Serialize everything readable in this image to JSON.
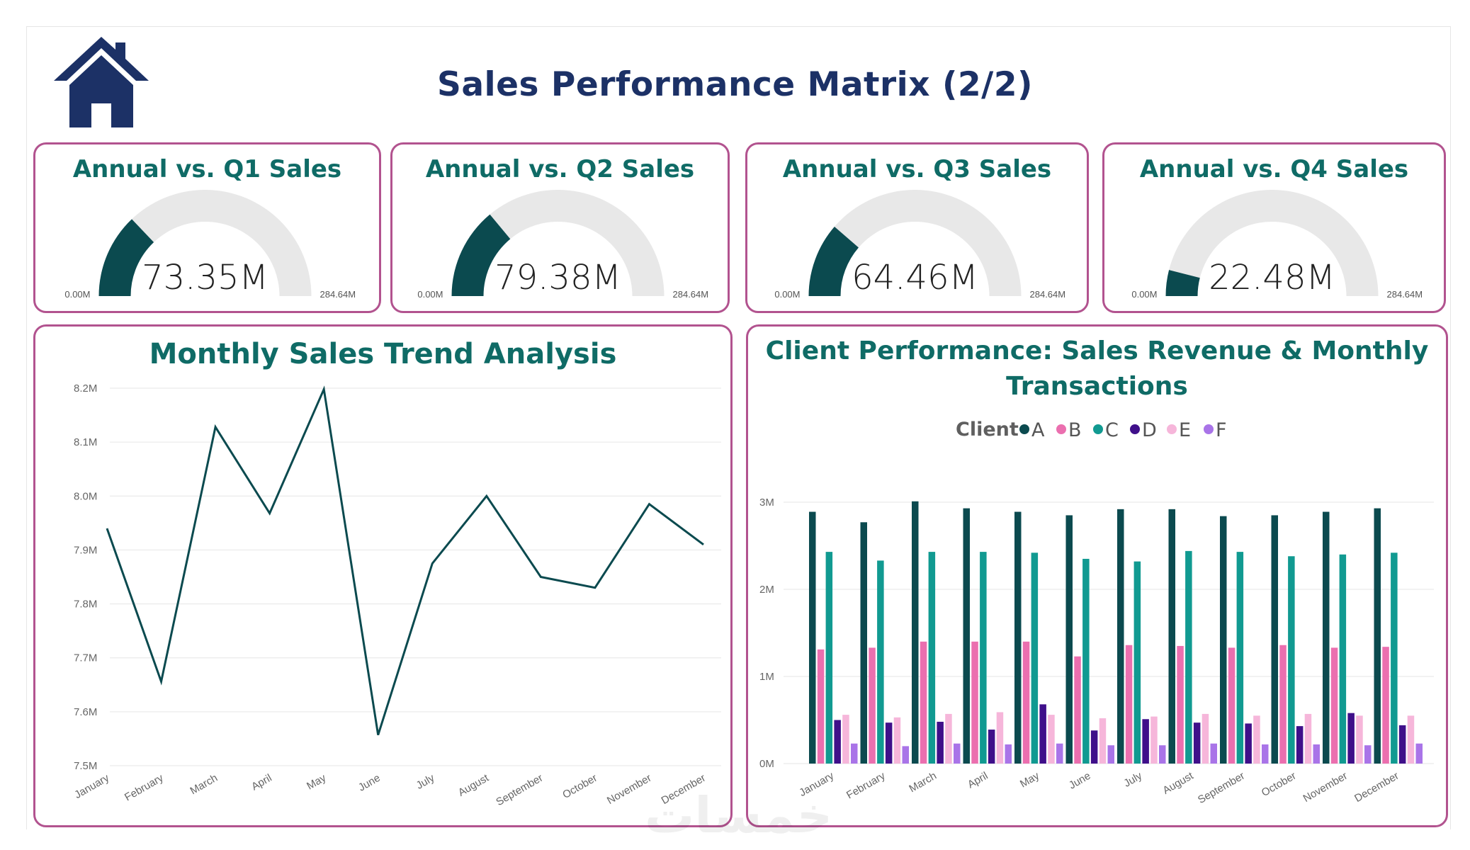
{
  "header": {
    "title": "Sales Performance Matrix (2/2)",
    "home_icon": "home-icon",
    "colors": {
      "title": "#1c3166",
      "border": "#b2538f",
      "card_title": "#0f6b66",
      "gauge_fill": "#0b4a4f",
      "gauge_track": "#e8e8e8"
    }
  },
  "gauges": [
    {
      "title": "Annual vs. Q1 Sales",
      "value": 73.35,
      "label": "73.35M",
      "min": 0,
      "max": 284.64,
      "min_label": "0.00M",
      "max_label": "284.64M"
    },
    {
      "title": "Annual vs. Q2 Sales",
      "value": 79.38,
      "label": "79.38M",
      "min": 0,
      "max": 284.64,
      "min_label": "0.00M",
      "max_label": "284.64M"
    },
    {
      "title": "Annual vs. Q3 Sales",
      "value": 64.46,
      "label": "64.46M",
      "min": 0,
      "max": 284.64,
      "min_label": "0.00M",
      "max_label": "284.64M"
    },
    {
      "title": "Annual vs. Q4 Sales",
      "value": 22.48,
      "label": "22.48M",
      "min": 0,
      "max": 284.64,
      "min_label": "0.00M",
      "max_label": "284.64M"
    }
  ],
  "chart_data": [
    {
      "type": "line",
      "title": "Monthly Sales Trend Analysis",
      "categories": [
        "January",
        "February",
        "March",
        "April",
        "May",
        "June",
        "July",
        "August",
        "September",
        "October",
        "November",
        "December"
      ],
      "values": [
        7.94,
        7.656,
        8.128,
        7.968,
        8.198,
        7.557,
        7.875,
        8.0,
        7.85,
        7.83,
        7.985,
        7.91
      ],
      "ylim": [
        7.5,
        8.2
      ],
      "yticks": [
        7.5,
        7.6,
        7.7,
        7.8,
        7.9,
        8.0,
        8.1,
        8.2
      ],
      "ytick_labels": [
        "7.5M",
        "7.6M",
        "7.7M",
        "7.8M",
        "7.9M",
        "8.0M",
        "8.1M",
        "8.2M"
      ],
      "grid": true,
      "color": "#0b4a4f"
    },
    {
      "type": "bar",
      "title_lines": [
        "Client Performance: Sales Revenue & Monthly",
        "Transactions"
      ],
      "legend_title": "Client",
      "legend_position": "top-center",
      "categories": [
        "January",
        "February",
        "March",
        "April",
        "May",
        "June",
        "July",
        "August",
        "September",
        "October",
        "November",
        "December"
      ],
      "series": [
        {
          "name": "A",
          "color": "#0b4a4f",
          "values": [
            2.89,
            2.77,
            3.01,
            2.93,
            2.89,
            2.85,
            2.92,
            2.92,
            2.84,
            2.85,
            2.89,
            2.93
          ]
        },
        {
          "name": "B",
          "color": "#eb6faf",
          "values": [
            1.31,
            1.33,
            1.4,
            1.4,
            1.4,
            1.23,
            1.36,
            1.35,
            1.33,
            1.36,
            1.33,
            1.34
          ]
        },
        {
          "name": "C",
          "color": "#119a91",
          "values": [
            2.43,
            2.33,
            2.43,
            2.43,
            2.42,
            2.35,
            2.32,
            2.44,
            2.43,
            2.38,
            2.4,
            2.42
          ]
        },
        {
          "name": "D",
          "color": "#3f0f8a",
          "values": [
            0.5,
            0.47,
            0.48,
            0.39,
            0.68,
            0.38,
            0.51,
            0.47,
            0.46,
            0.43,
            0.58,
            0.44
          ]
        },
        {
          "name": "E",
          "color": "#f6b6da",
          "values": [
            0.56,
            0.53,
            0.57,
            0.59,
            0.56,
            0.52,
            0.54,
            0.57,
            0.55,
            0.57,
            0.55,
            0.55
          ]
        },
        {
          "name": "F",
          "color": "#a974e8",
          "values": [
            0.23,
            0.2,
            0.23,
            0.22,
            0.23,
            0.21,
            0.21,
            0.23,
            0.22,
            0.22,
            0.21,
            0.23
          ]
        }
      ],
      "ylim": [
        0,
        3
      ],
      "yticks": [
        0,
        1,
        2,
        3
      ],
      "ytick_labels": [
        "0M",
        "1M",
        "2M",
        "3M"
      ],
      "grid": true
    }
  ]
}
